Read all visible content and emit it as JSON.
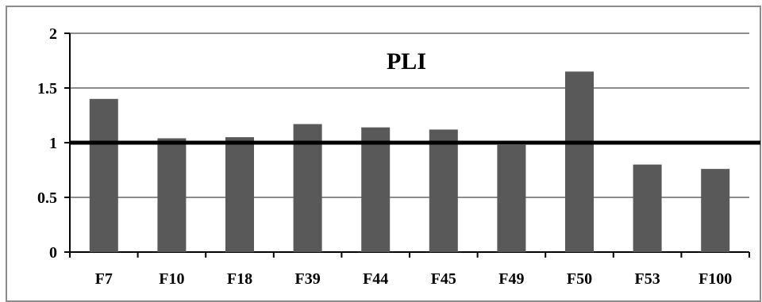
{
  "chart_data": {
    "type": "bar",
    "title": "PLI",
    "xlabel": "",
    "ylabel": "",
    "categories": [
      "F7",
      "F10",
      "F18",
      "F39",
      "F44",
      "F45",
      "F49",
      "F50",
      "F53",
      "F100"
    ],
    "values": [
      1.4,
      1.04,
      1.05,
      1.17,
      1.14,
      1.12,
      0.98,
      1.65,
      0.8,
      0.76
    ],
    "ylim": [
      0,
      2
    ],
    "yticks": [
      {
        "value": 0,
        "label": "0"
      },
      {
        "value": 0.5,
        "label": "0.5"
      },
      {
        "value": 1,
        "label": "1"
      },
      {
        "value": 1.5,
        "label": "1.5"
      },
      {
        "value": 2,
        "label": "2"
      }
    ],
    "reference_line": 1,
    "grid": true,
    "legend": "none",
    "bar_color": "#595959",
    "reference_line_color": "#000000",
    "grid_color": "#8c8c8c"
  }
}
